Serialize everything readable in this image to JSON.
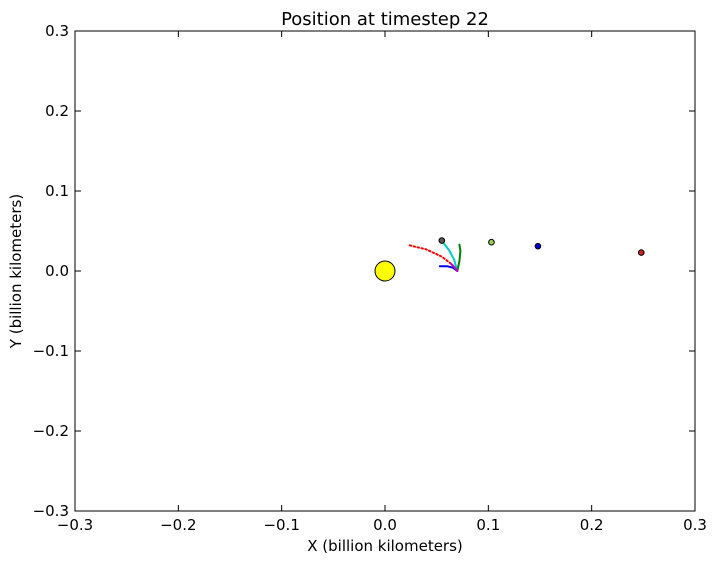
{
  "chart_data": {
    "type": "scatter",
    "title": "Position at timestep 22",
    "xlabel": "X (billion kilometers)",
    "ylabel": "Y (billion kilometers)",
    "xlim": [
      -0.3,
      0.3
    ],
    "ylim": [
      -0.3,
      0.3
    ],
    "xticks": [
      -0.3,
      -0.2,
      -0.1,
      0.0,
      0.1,
      0.2,
      0.3
    ],
    "yticks": [
      -0.3,
      -0.2,
      -0.1,
      0.0,
      0.1,
      0.2,
      0.3
    ],
    "xtick_labels": [
      "−0.3",
      "−0.2",
      "−0.1",
      "0.0",
      "0.1",
      "0.2",
      "0.3"
    ],
    "ytick_labels": [
      "−0.3",
      "−0.2",
      "−0.1",
      "0.0",
      "0.1",
      "0.2",
      "0.3"
    ],
    "grid": false,
    "bodies": [
      {
        "x": 0.0,
        "y": 0.0,
        "color": "#ffff00",
        "size": "large"
      },
      {
        "x": 0.055,
        "y": 0.038,
        "color": "#555555",
        "size": "small"
      },
      {
        "x": 0.103,
        "y": 0.036,
        "color": "#99cc55",
        "size": "small"
      },
      {
        "x": 0.148,
        "y": 0.031,
        "color": "#0000cc",
        "size": "small"
      },
      {
        "x": 0.248,
        "y": 0.023,
        "color": "#cc2222",
        "size": "small"
      }
    ],
    "trails": [
      {
        "color": "#ff0000",
        "style": "dotted",
        "points": [
          [
            0.024,
            0.032
          ],
          [
            0.04,
            0.027
          ],
          [
            0.055,
            0.018
          ],
          [
            0.065,
            0.008
          ],
          [
            0.07,
            0.0
          ]
        ]
      },
      {
        "color": "#00cccc",
        "style": "solid",
        "points": [
          [
            0.056,
            0.036
          ],
          [
            0.062,
            0.026
          ],
          [
            0.067,
            0.014
          ],
          [
            0.07,
            0.0
          ]
        ]
      },
      {
        "color": "#008000",
        "style": "solid",
        "points": [
          [
            0.072,
            0.033
          ],
          [
            0.073,
            0.025
          ],
          [
            0.072,
            0.012
          ],
          [
            0.07,
            0.0
          ]
        ]
      },
      {
        "color": "#0000ff",
        "style": "solid",
        "points": [
          [
            0.053,
            0.006
          ],
          [
            0.06,
            0.006
          ],
          [
            0.066,
            0.004
          ],
          [
            0.07,
            0.0
          ]
        ]
      },
      {
        "color": "#cc00cc",
        "style": "solid",
        "points": [
          [
            0.064,
            0.009
          ],
          [
            0.067,
            0.005
          ],
          [
            0.07,
            0.0
          ]
        ]
      }
    ]
  }
}
